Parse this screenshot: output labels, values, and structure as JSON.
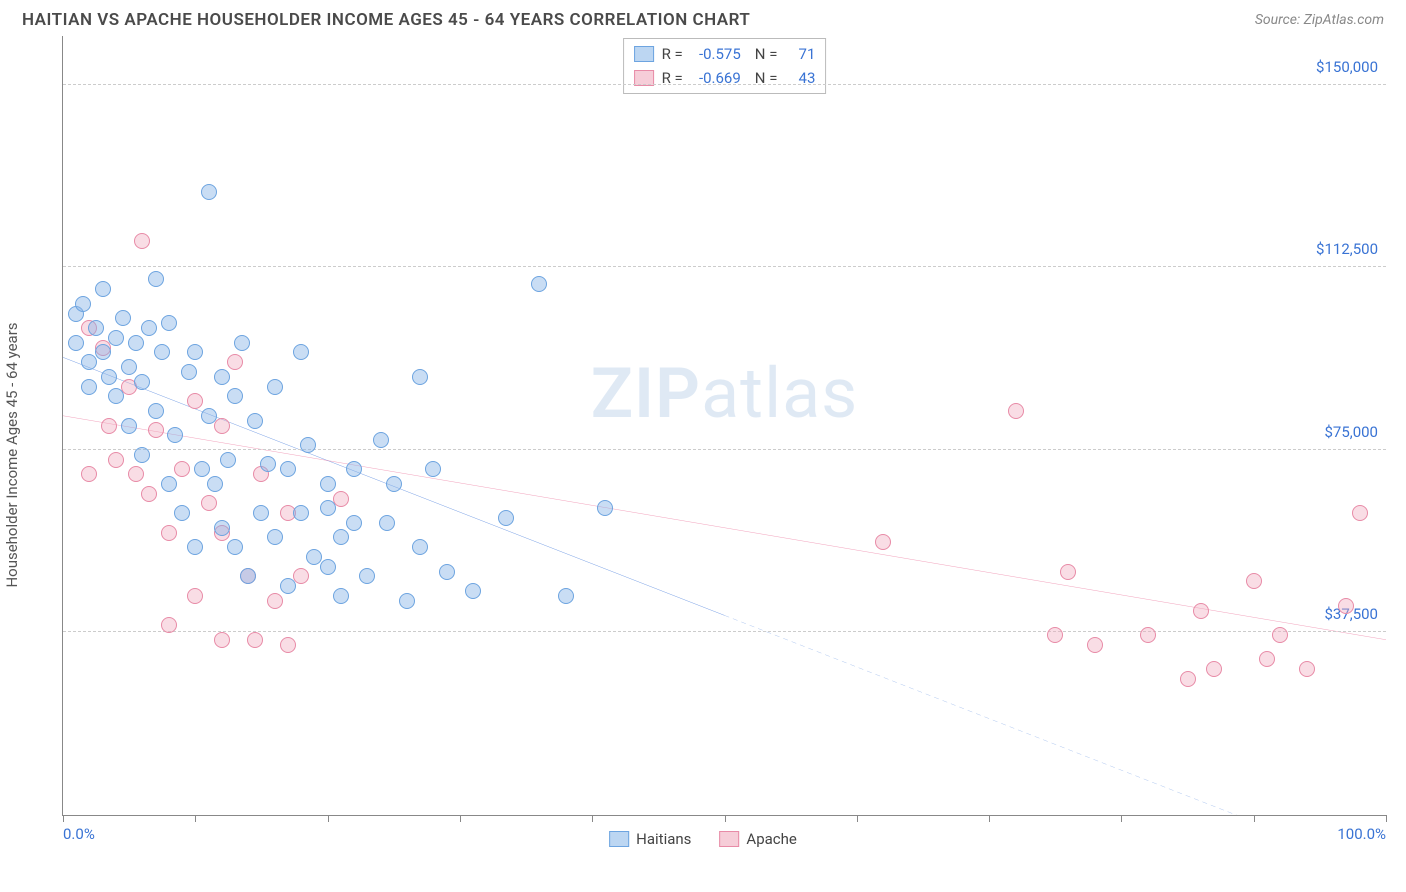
{
  "header": {
    "title": "HAITIAN VS APACHE HOUSEHOLDER INCOME AGES 45 - 64 YEARS CORRELATION CHART",
    "source": "Source: ZipAtlas.com"
  },
  "axes": {
    "y_label": "Householder Income Ages 45 - 64 years",
    "y_min": 0,
    "y_max": 160000,
    "y_ticks": [
      37500,
      75000,
      112500,
      150000
    ],
    "y_tick_labels": [
      "$37,500",
      "$75,000",
      "$112,500",
      "$150,000"
    ],
    "x_min": 0,
    "x_max": 100,
    "x_tick_positions": [
      0,
      10,
      20,
      30,
      40,
      50,
      60,
      70,
      80,
      90,
      100
    ],
    "x_min_label": "0.0%",
    "x_max_label": "100.0%"
  },
  "watermark": "ZIPatlas",
  "legend_top": {
    "rows": [
      {
        "r_label": "R =",
        "r_val": "-0.575",
        "n_label": "N =",
        "n_val": "71",
        "swatch_fill": "#bcd6f2",
        "swatch_stroke": "#6da4e0"
      },
      {
        "r_label": "R =",
        "r_val": "-0.669",
        "n_label": "N =",
        "n_val": "43",
        "swatch_fill": "#f6cdd8",
        "swatch_stroke": "#e88ba7"
      }
    ]
  },
  "legend_bottom": {
    "items": [
      {
        "label": "Haitians",
        "swatch_fill": "#bcd6f2",
        "swatch_stroke": "#6da4e0"
      },
      {
        "label": "Apache",
        "swatch_fill": "#f6cdd8",
        "swatch_stroke": "#e88ba7"
      }
    ]
  },
  "style": {
    "point_radius": 8,
    "series": {
      "haitians": {
        "fill": "rgba(135,180,230,0.45)",
        "stroke": "#6da4e0"
      },
      "apache": {
        "fill": "rgba(240,170,190,0.40)",
        "stroke": "#e88ba7"
      }
    },
    "trend": {
      "haitians": {
        "color": "#2e6bd6",
        "width": 2.5,
        "pts": [
          [
            0,
            94000
          ],
          [
            50,
            41000
          ]
        ],
        "dash_ext": [
          [
            50,
            41000
          ],
          [
            100,
            -12000
          ]
        ]
      },
      "apache": {
        "color": "#e75a87",
        "width": 2.2,
        "pts": [
          [
            0,
            82000
          ],
          [
            100,
            36000
          ]
        ]
      }
    }
  },
  "series": {
    "haitians": [
      [
        1,
        97000
      ],
      [
        1,
        103000
      ],
      [
        1.5,
        105000
      ],
      [
        2,
        93000
      ],
      [
        2,
        88000
      ],
      [
        2.5,
        100000
      ],
      [
        3,
        108000
      ],
      [
        3,
        95000
      ],
      [
        3.5,
        90000
      ],
      [
        4,
        98000
      ],
      [
        4,
        86000
      ],
      [
        4.5,
        102000
      ],
      [
        5,
        92000
      ],
      [
        5,
        80000
      ],
      [
        5.5,
        97000
      ],
      [
        6,
        89000
      ],
      [
        6,
        74000
      ],
      [
        6.5,
        100000
      ],
      [
        7,
        110000
      ],
      [
        7,
        83000
      ],
      [
        7.5,
        95000
      ],
      [
        8,
        68000
      ],
      [
        8,
        101000
      ],
      [
        8.5,
        78000
      ],
      [
        9,
        62000
      ],
      [
        9.5,
        91000
      ],
      [
        10,
        55000
      ],
      [
        10,
        95000
      ],
      [
        10.5,
        71000
      ],
      [
        11,
        128000
      ],
      [
        11,
        82000
      ],
      [
        11.5,
        68000
      ],
      [
        12,
        59000
      ],
      [
        12,
        90000
      ],
      [
        12.5,
        73000
      ],
      [
        13,
        55000
      ],
      [
        13,
        86000
      ],
      [
        13.5,
        97000
      ],
      [
        14,
        49000
      ],
      [
        14.5,
        81000
      ],
      [
        15,
        62000
      ],
      [
        15.5,
        72000
      ],
      [
        16,
        88000
      ],
      [
        16,
        57000
      ],
      [
        17,
        47000
      ],
      [
        17,
        71000
      ],
      [
        18,
        95000
      ],
      [
        18,
        62000
      ],
      [
        18.5,
        76000
      ],
      [
        19,
        53000
      ],
      [
        20,
        51000
      ],
      [
        20,
        68000
      ],
      [
        20,
        63000
      ],
      [
        21,
        45000
      ],
      [
        21,
        57000
      ],
      [
        22,
        71000
      ],
      [
        22,
        60000
      ],
      [
        23,
        49000
      ],
      [
        24,
        77000
      ],
      [
        24.5,
        60000
      ],
      [
        25,
        68000
      ],
      [
        26,
        44000
      ],
      [
        27,
        90000
      ],
      [
        27,
        55000
      ],
      [
        28,
        71000
      ],
      [
        29,
        50000
      ],
      [
        31,
        46000
      ],
      [
        33.5,
        61000
      ],
      [
        36,
        109000
      ],
      [
        38,
        45000
      ],
      [
        41,
        63000
      ]
    ],
    "apache": [
      [
        2,
        100000
      ],
      [
        2,
        70000
      ],
      [
        3,
        96000
      ],
      [
        3.5,
        80000
      ],
      [
        4,
        73000
      ],
      [
        5,
        88000
      ],
      [
        5.5,
        70000
      ],
      [
        6,
        118000
      ],
      [
        6.5,
        66000
      ],
      [
        7,
        79000
      ],
      [
        8,
        58000
      ],
      [
        8,
        39000
      ],
      [
        9,
        71000
      ],
      [
        10,
        85000
      ],
      [
        10,
        45000
      ],
      [
        11,
        64000
      ],
      [
        12,
        80000
      ],
      [
        12,
        36000
      ],
      [
        12,
        58000
      ],
      [
        13,
        93000
      ],
      [
        14,
        49000
      ],
      [
        14.5,
        36000
      ],
      [
        15,
        70000
      ],
      [
        16,
        44000
      ],
      [
        17,
        62000
      ],
      [
        17,
        35000
      ],
      [
        18,
        49000
      ],
      [
        21,
        65000
      ],
      [
        62,
        56000
      ],
      [
        72,
        83000
      ],
      [
        75,
        37000
      ],
      [
        76,
        50000
      ],
      [
        78,
        35000
      ],
      [
        82,
        37000
      ],
      [
        85,
        28000
      ],
      [
        86,
        42000
      ],
      [
        87,
        30000
      ],
      [
        90,
        48000
      ],
      [
        91,
        32000
      ],
      [
        92,
        37000
      ],
      [
        94,
        30000
      ],
      [
        97,
        43000
      ],
      [
        98,
        62000
      ]
    ]
  }
}
